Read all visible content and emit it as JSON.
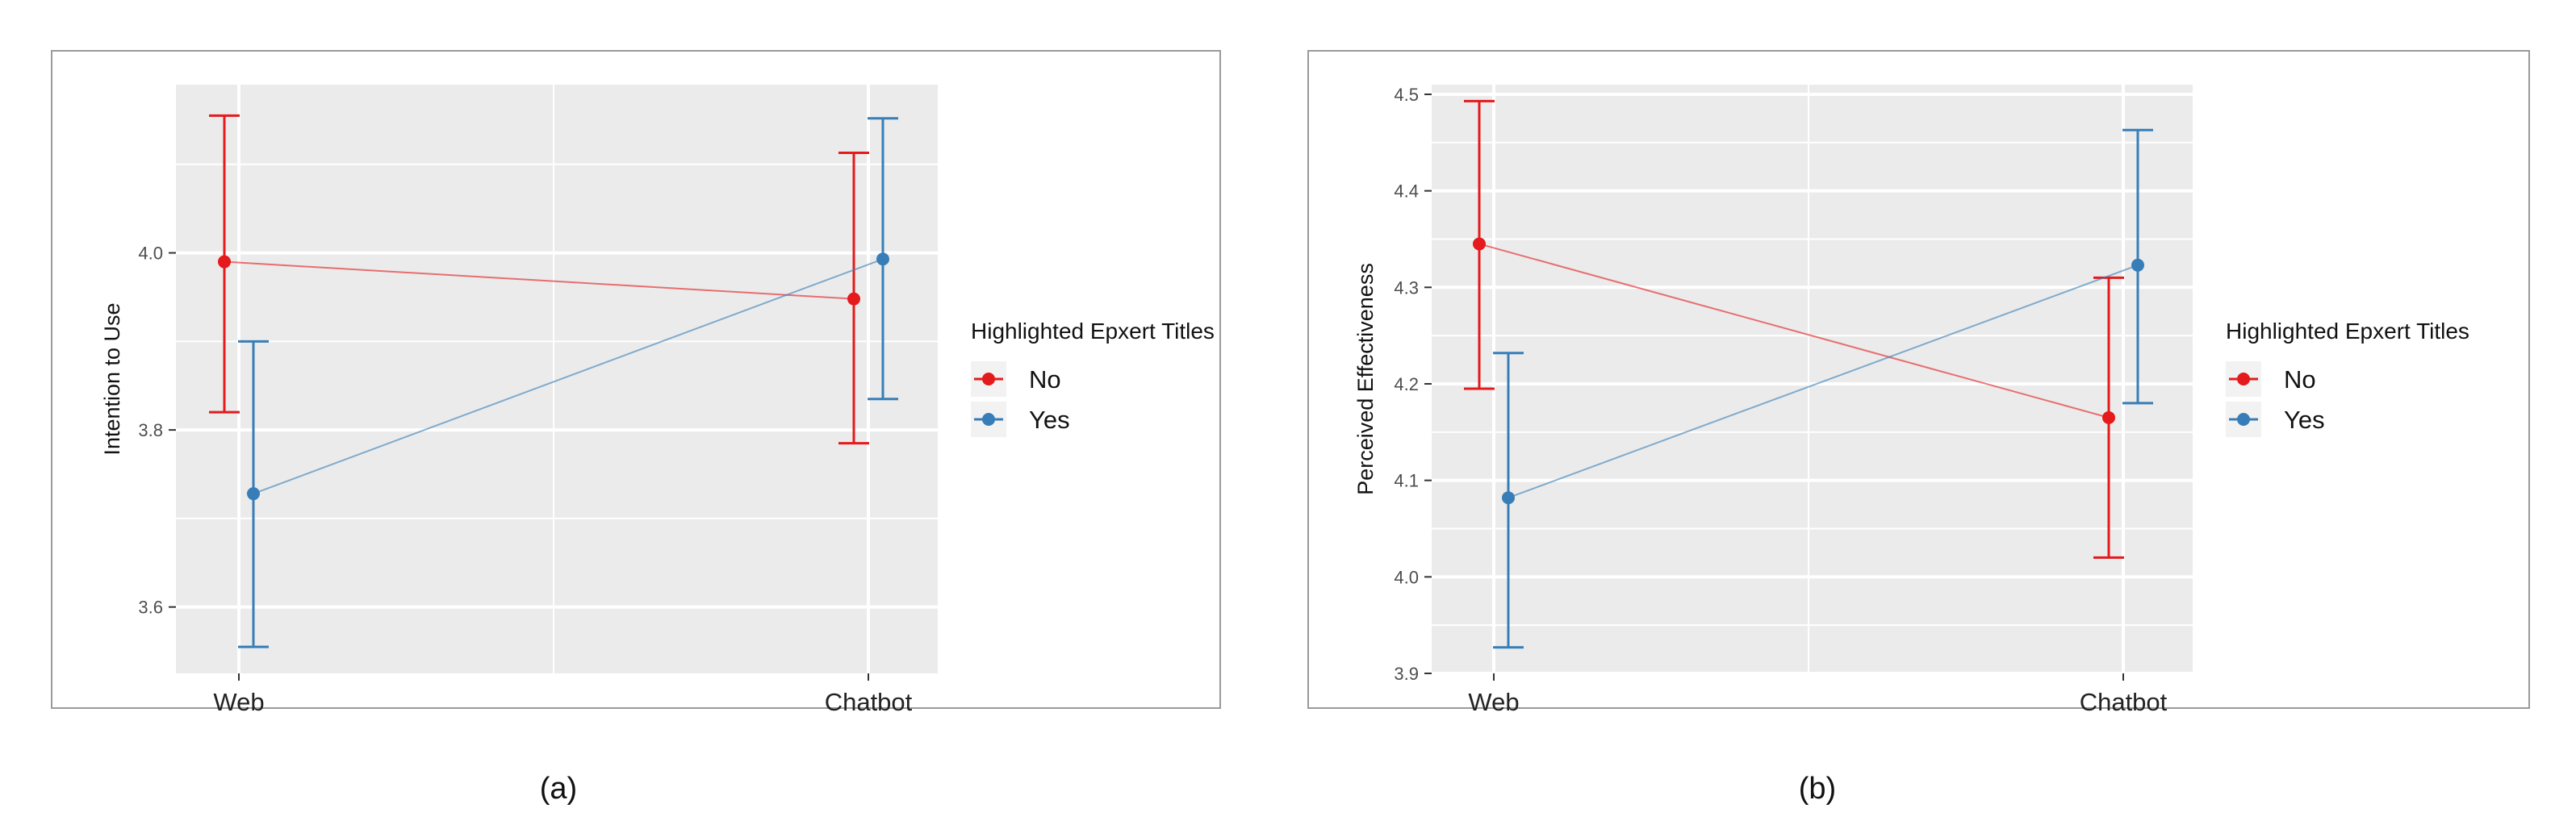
{
  "chart_data": [
    {
      "type": "line",
      "panel_label": "(a)",
      "ylabel": "Intention to Use",
      "categories": [
        "Web",
        "Chatbot"
      ],
      "ylim": [
        3.525,
        4.19
      ],
      "yticks": [
        3.6,
        3.8,
        4.0
      ],
      "ytick_labels": [
        "3.6",
        "3.8",
        "4.0"
      ],
      "grid": true,
      "legend": {
        "title": "Highlighted Epxert Titles",
        "position": "right"
      },
      "series": [
        {
          "name": "No",
          "color": "#E41A1C",
          "values": [
            3.99,
            3.948
          ],
          "lower": [
            3.82,
            3.785
          ],
          "upper": [
            4.155,
            4.113
          ]
        },
        {
          "name": "Yes",
          "color": "#377EB8",
          "values": [
            3.728,
            3.993
          ],
          "lower": [
            3.555,
            3.835
          ],
          "upper": [
            3.9,
            4.152
          ]
        }
      ]
    },
    {
      "type": "line",
      "panel_label": "(b)",
      "ylabel": "Perceived Effectiveness",
      "categories": [
        "Web",
        "Chatbot"
      ],
      "ylim": [
        3.9,
        4.51
      ],
      "yticks": [
        3.9,
        4.0,
        4.1,
        4.2,
        4.3,
        4.4,
        4.5
      ],
      "ytick_labels": [
        "3.9",
        "4.0",
        "4.1",
        "4.2",
        "4.3",
        "4.4",
        "4.5"
      ],
      "grid": true,
      "legend": {
        "title": "Highlighted Epxert Titles",
        "position": "right"
      },
      "series": [
        {
          "name": "No",
          "color": "#E41A1C",
          "values": [
            4.345,
            4.165
          ],
          "lower": [
            4.195,
            4.02
          ],
          "upper": [
            4.493,
            4.31
          ]
        },
        {
          "name": "Yes",
          "color": "#377EB8",
          "values": [
            4.082,
            4.323
          ],
          "lower": [
            3.927,
            4.18
          ],
          "upper": [
            4.232,
            4.463
          ]
        }
      ]
    }
  ]
}
